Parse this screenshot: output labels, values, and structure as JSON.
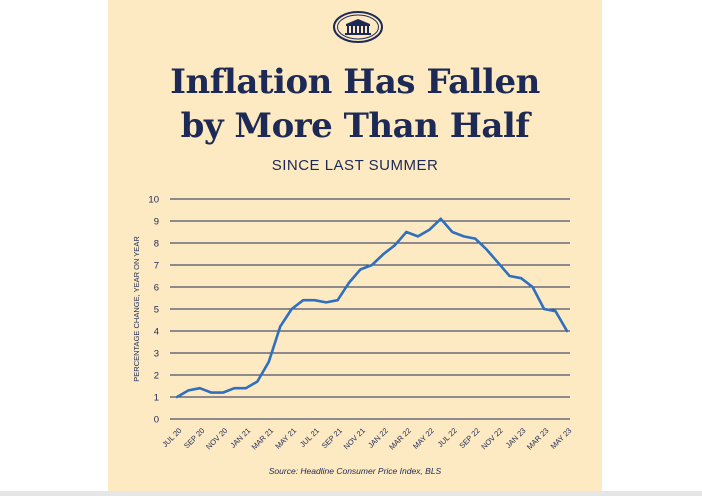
{
  "title_line1": "Inflation Has Fallen",
  "title_line2": "by More Than Half",
  "subtitle": "SINCE LAST SUMMER",
  "source": "Source: Headline Consumer Price Index, BLS",
  "colors": {
    "background": "#fde9c2",
    "navy": "#1c2a55",
    "line": "#2f6fbf"
  },
  "chart_data": {
    "type": "line",
    "title": "Inflation Has Fallen by More Than Half",
    "subtitle": "SINCE LAST SUMMER",
    "xlabel": "",
    "ylabel": "PERCENTAGE CHANGE, YEAR ON YEAR",
    "ylim": [
      0,
      10
    ],
    "yticks": [
      0,
      1,
      2,
      3,
      4,
      5,
      6,
      7,
      8,
      9,
      10
    ],
    "grid": true,
    "xtick_labels": [
      "JUL 20",
      "SEP 20",
      "NOV 20",
      "JAN 21",
      "MAR 21",
      "MAY 21",
      "JUL 21",
      "SEP 21",
      "NOV 21",
      "JAN 22",
      "MAR 22",
      "MAY 22",
      "JUL 22",
      "SEP 22",
      "NOV 22",
      "JAN 23",
      "MAR 23",
      "MAY 23"
    ],
    "x": [
      "Jul 2020",
      "Aug 2020",
      "Sep 2020",
      "Oct 2020",
      "Nov 2020",
      "Dec 2020",
      "Jan 2021",
      "Feb 2021",
      "Mar 2021",
      "Apr 2021",
      "May 2021",
      "Jun 2021",
      "Jul 2021",
      "Aug 2021",
      "Sep 2021",
      "Oct 2021",
      "Nov 2021",
      "Dec 2021",
      "Jan 2022",
      "Feb 2022",
      "Mar 2022",
      "Apr 2022",
      "May 2022",
      "Jun 2022",
      "Jul 2022",
      "Aug 2022",
      "Sep 2022",
      "Oct 2022",
      "Nov 2022",
      "Dec 2022",
      "Jan 2023",
      "Feb 2023",
      "Mar 2023",
      "Apr 2023",
      "May 2023"
    ],
    "series": [
      {
        "values": [
          1.0,
          1.3,
          1.4,
          1.2,
          1.2,
          1.4,
          1.4,
          1.7,
          2.6,
          4.2,
          5.0,
          5.4,
          5.4,
          5.3,
          5.4,
          6.2,
          6.8,
          7.0,
          7.5,
          7.9,
          8.5,
          8.3,
          8.6,
          9.1,
          8.5,
          8.3,
          8.2,
          7.7,
          7.1,
          6.5,
          6.4,
          6.0,
          5.0,
          4.9,
          4.0
        ]
      }
    ],
    "source": "Source: Headline Consumer Price Index, BLS"
  }
}
